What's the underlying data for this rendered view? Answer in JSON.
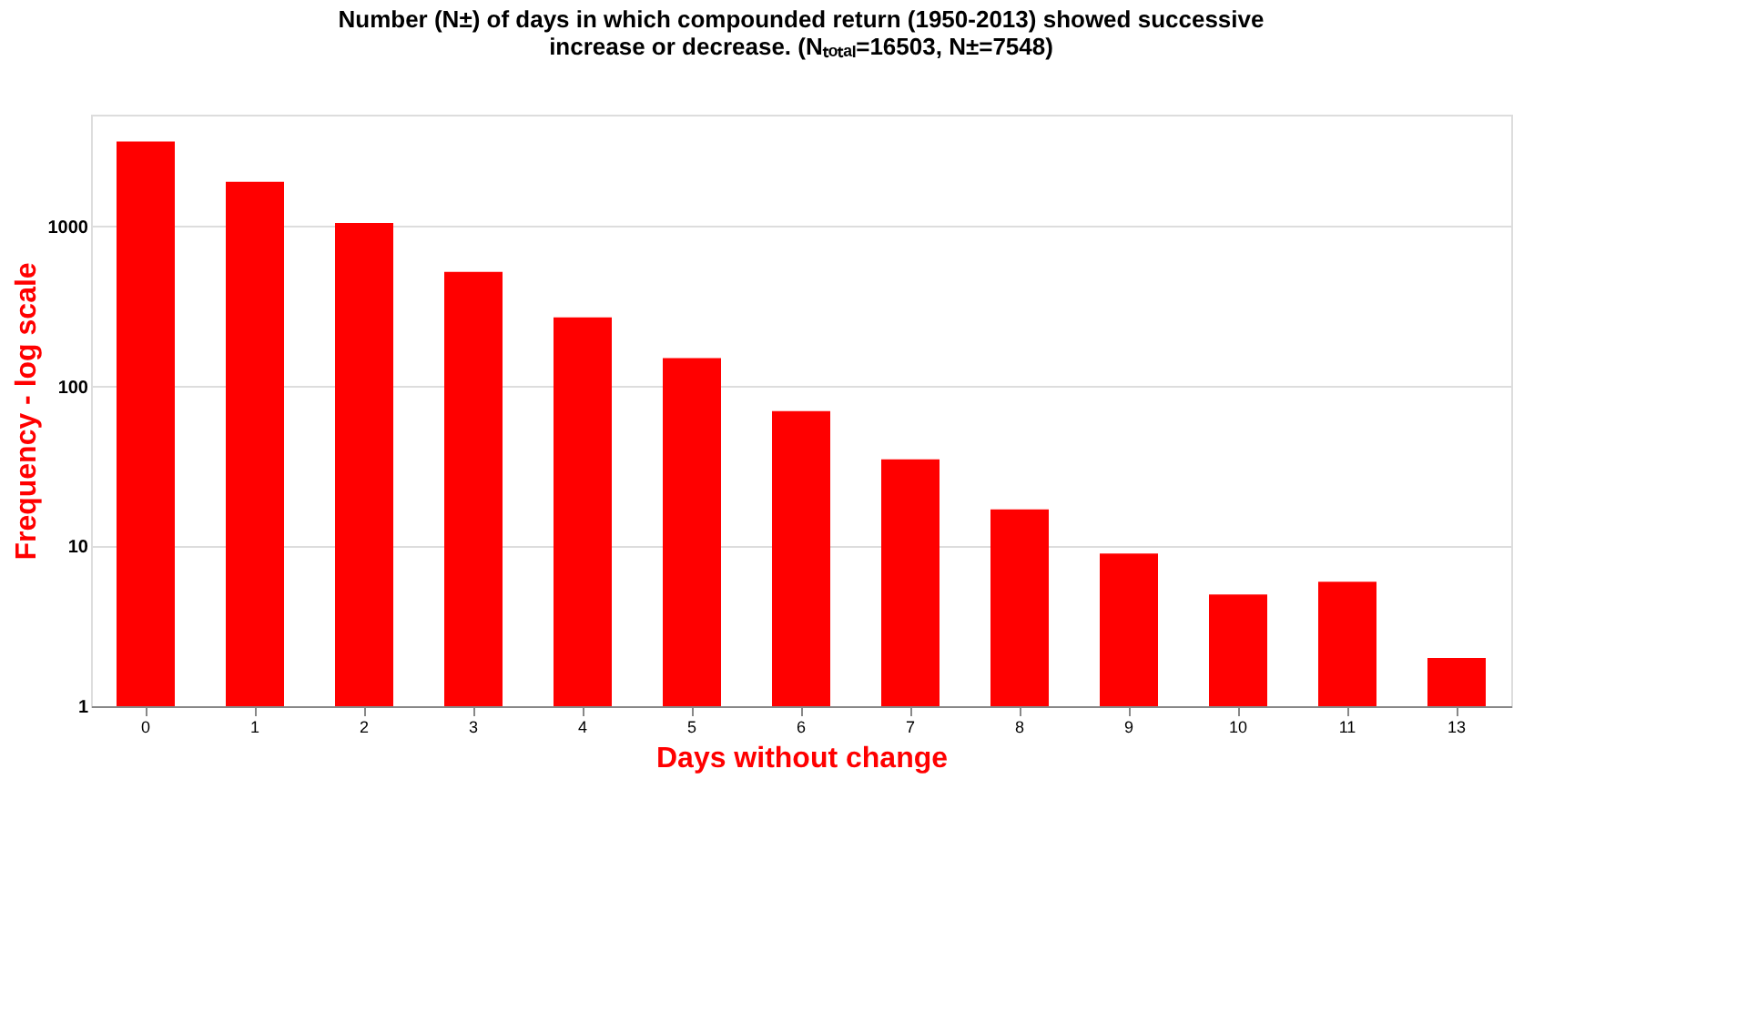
{
  "chart_data": {
    "type": "bar",
    "title": [
      "Number (N±) of days in which compounded return (1950-2013) showed successive",
      "increase or decrease.  (Nₜₒₜₐₗ=16503, N±=7548)"
    ],
    "xlabel": "Days without change",
    "ylabel": "Frequency - log scale",
    "categories": [
      "0",
      "1",
      "2",
      "3",
      "4",
      "5",
      "6",
      "7",
      "8",
      "9",
      "10",
      "11",
      "13"
    ],
    "values": [
      3400,
      1900,
      1050,
      520,
      270,
      150,
      70,
      35,
      17,
      9,
      5,
      6,
      2
    ],
    "color": "#ff0000",
    "log": true,
    "ylim": [
      1,
      5000
    ],
    "yticks": [
      1,
      10,
      100,
      1000
    ],
    "grid": "y"
  }
}
